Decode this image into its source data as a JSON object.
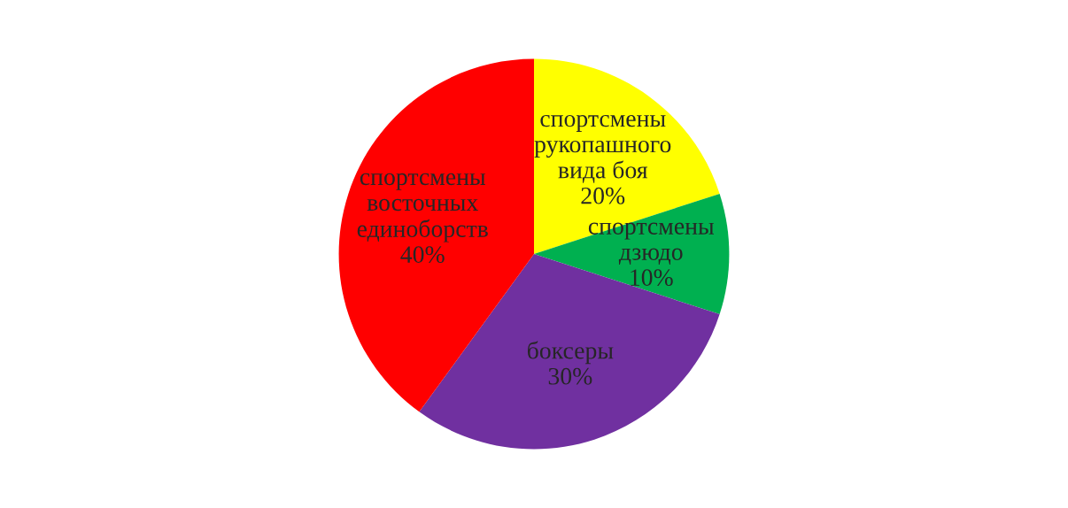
{
  "chart_data": {
    "type": "pie",
    "categories": [
      "спортсмены рукопашного вида боя",
      "спортсмены дзюдо",
      "боксеры",
      "спортсмены восточных единоборств"
    ],
    "values": [
      20,
      10,
      30,
      40
    ],
    "value_labels": [
      "20%",
      "10%",
      "30%",
      "40%"
    ],
    "colors": [
      "#ffff00",
      "#00b050",
      "#7030a0",
      "#ff0000"
    ]
  }
}
